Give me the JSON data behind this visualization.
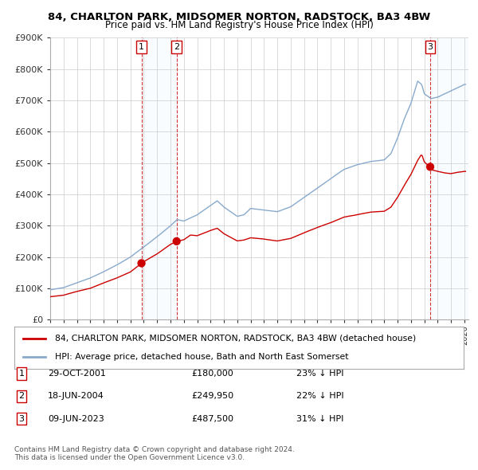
{
  "title1": "84, CHARLTON PARK, MIDSOMER NORTON, RADSTOCK, BA3 4BW",
  "title2": "Price paid vs. HM Land Registry's House Price Index (HPI)",
  "legend_red": "84, CHARLTON PARK, MIDSOMER NORTON, RADSTOCK, BA3 4BW (detached house)",
  "legend_blue": "HPI: Average price, detached house, Bath and North East Somerset",
  "transactions": [
    {
      "num": 1,
      "date": "29-OCT-2001",
      "price": 180000,
      "pct": "23%",
      "dir": "↓",
      "year": 2001.83
    },
    {
      "num": 2,
      "date": "18-JUN-2004",
      "price": 249950,
      "pct": "22%",
      "dir": "↓",
      "year": 2004.46
    },
    {
      "num": 3,
      "date": "09-JUN-2023",
      "price": 487500,
      "pct": "31%",
      "dir": "↓",
      "year": 2023.44
    }
  ],
  "footer1": "Contains HM Land Registry data © Crown copyright and database right 2024.",
  "footer2": "This data is licensed under the Open Government Licence v3.0.",
  "ylim": [
    0,
    900000
  ],
  "xlim_start": 1995.5,
  "xlim_end": 2026.3,
  "red_color": "#cc0000",
  "blue_color": "#88aacc",
  "shade_color": "#ddeeff",
  "background_color": "#ffffff",
  "grid_color": "#cccccc"
}
